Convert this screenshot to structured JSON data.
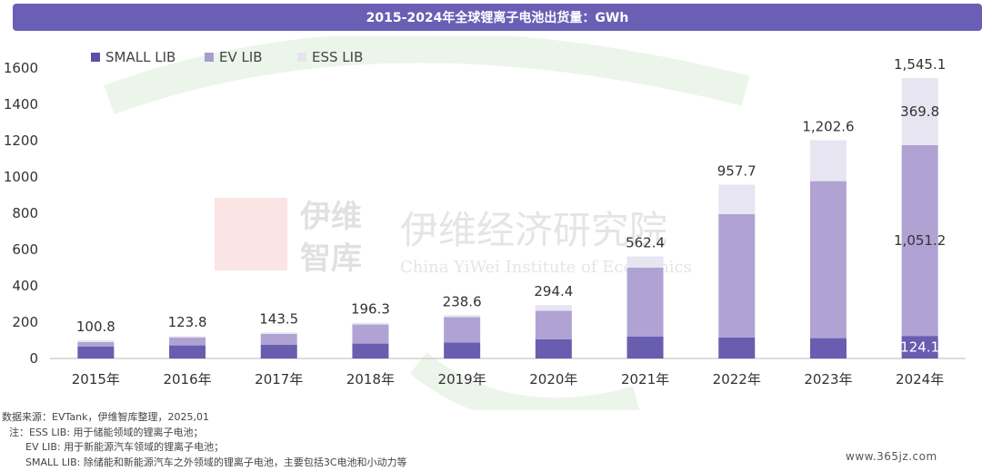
{
  "chart_data": {
    "type": "bar",
    "stacked": true,
    "title": "2015-2024年全球锂离子电池出货量：GWh",
    "categories": [
      "2015年",
      "2016年",
      "2017年",
      "2018年",
      "2019年",
      "2020年",
      "2021年",
      "2022年",
      "2023年",
      "2024年"
    ],
    "series": [
      {
        "name": "SMALL LIB",
        "color": "#5b4fa8",
        "values": [
          65,
          72,
          75,
          82,
          88,
          105,
          120,
          115,
          112,
          124.1
        ]
      },
      {
        "name": "EV LIB",
        "color": "#a99bd0",
        "values": [
          26,
          43,
          60,
          105,
          140,
          158,
          380,
          680,
          865,
          1051.2
        ]
      },
      {
        "name": "ESS LIB",
        "color": "#e6e3f1",
        "values": [
          9.8,
          8.8,
          8.5,
          9.3,
          10.6,
          31.4,
          62.4,
          162.7,
          225.6,
          369.8
        ]
      }
    ],
    "totals": [
      "100.8",
      "123.8",
      "143.5",
      "196.3",
      "238.6",
      "294.4",
      "562.4",
      "957.7",
      "1,202.6",
      "1,545.1"
    ],
    "segment_labels_2024": {
      "small": "124.1",
      "ev": "1,051.2",
      "ess": "369.8"
    },
    "yticks": [
      "0",
      "200",
      "400",
      "600",
      "800",
      "1000",
      "1200",
      "1400",
      "1600"
    ],
    "ylim": [
      0,
      1600
    ],
    "legend_position": "top-left",
    "grid": false
  },
  "watermark": {
    "cn": "伊维经济研究院",
    "cn_short1": "伊维",
    "cn_short2": "智库",
    "en": "China YiWei Institute of Economics"
  },
  "notes": {
    "line1": "数据来源：EVTank，伊维智库整理，2025,01",
    "line2": "注：ESS LIB: 用于储能领域的锂离子电池；",
    "line3": "EV LIB: 用于新能源汽车领域的锂离子电池；",
    "line4": "SMALL LIB: 除储能和新能源汽车之外领域的锂离子电池，主要包括3C电池和小动力等"
  },
  "site_watermark": "www.365jz.com"
}
